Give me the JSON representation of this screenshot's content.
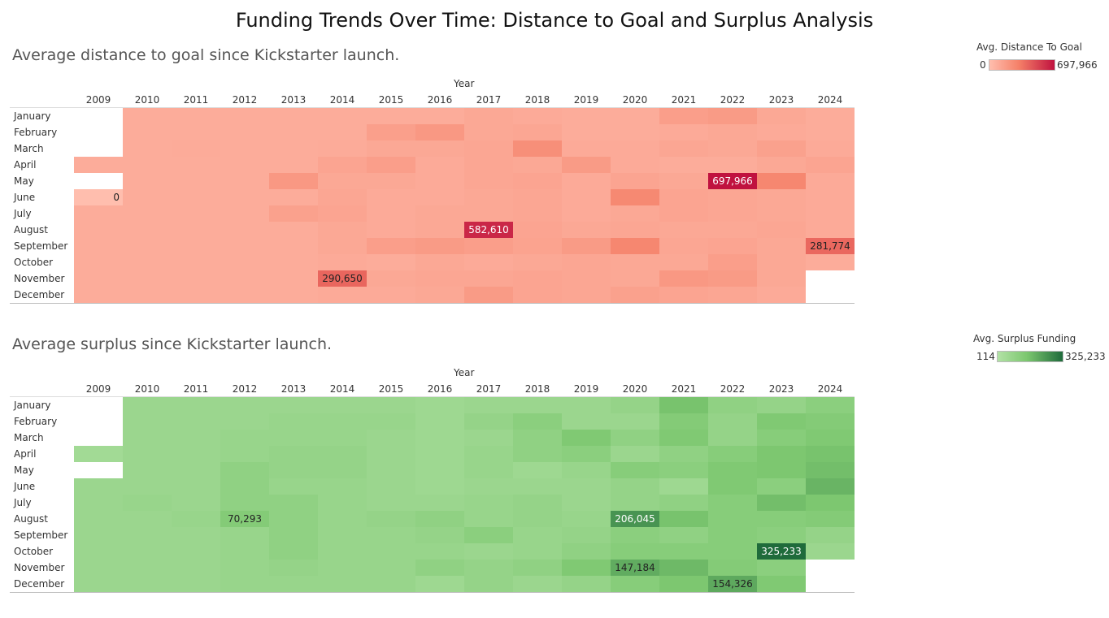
{
  "title": "Funding Trends Over Time: Distance to Goal and Surplus Analysis",
  "colors": {
    "distance_low": "#ffbeae",
    "distance_mid": "#f58068",
    "distance_high": "#c0123f",
    "surplus_low": "#b2e2a5",
    "surplus_mid": "#7cc76f",
    "surplus_high": "#1f6b3b"
  },
  "chart_data": [
    {
      "type": "heatmap",
      "title": "Average distance to goal since Kickstarter launch.",
      "xlabel": "Year",
      "ylabel": "",
      "x": [
        "2009",
        "2010",
        "2011",
        "2012",
        "2013",
        "2014",
        "2015",
        "2016",
        "2017",
        "2018",
        "2019",
        "2020",
        "2021",
        "2022",
        "2023",
        "2024"
      ],
      "y": [
        "January",
        "February",
        "March",
        "April",
        "May",
        "June",
        "July",
        "August",
        "September",
        "October",
        "November",
        "December"
      ],
      "color_legend": {
        "title": "Avg. Distance To Goal",
        "min_label": "0",
        "max_label": "697,966",
        "min": 0,
        "max": 697966
      },
      "values": [
        [
          null,
          20000,
          20000,
          20000,
          20000,
          20000,
          20000,
          20000,
          30000,
          25000,
          20000,
          20000,
          60000,
          70000,
          30000,
          20000
        ],
        [
          null,
          20000,
          20000,
          20000,
          20000,
          20000,
          55000,
          80000,
          30000,
          35000,
          20000,
          20000,
          25000,
          30000,
          25000,
          20000
        ],
        [
          null,
          20000,
          22000,
          20000,
          20000,
          22000,
          30000,
          30000,
          35000,
          120000,
          25000,
          25000,
          35000,
          30000,
          50000,
          25000
        ],
        [
          20000,
          20000,
          20000,
          20000,
          20000,
          40000,
          60000,
          25000,
          35000,
          30000,
          70000,
          25000,
          20000,
          20000,
          30000,
          40000
        ],
        [
          null,
          20000,
          20000,
          20000,
          80000,
          30000,
          30000,
          25000,
          35000,
          40000,
          25000,
          40000,
          30000,
          697966,
          160000,
          25000
        ],
        [
          0,
          20000,
          20000,
          20000,
          20000,
          35000,
          25000,
          25000,
          30000,
          35000,
          25000,
          150000,
          40000,
          35000,
          30000,
          25000
        ],
        [
          20000,
          20000,
          20000,
          20000,
          50000,
          40000,
          25000,
          30000,
          30000,
          35000,
          25000,
          30000,
          40000,
          35000,
          30000,
          25000
        ],
        [
          20000,
          20000,
          20000,
          20000,
          20000,
          30000,
          25000,
          30000,
          582610,
          40000,
          30000,
          35000,
          30000,
          30000,
          35000,
          25000
        ],
        [
          20000,
          20000,
          20000,
          20000,
          20000,
          30000,
          60000,
          70000,
          60000,
          45000,
          70000,
          160000,
          35000,
          40000,
          30000,
          281774
        ],
        [
          20000,
          20000,
          20000,
          20000,
          20000,
          25000,
          20000,
          30000,
          25000,
          30000,
          35000,
          30000,
          30000,
          60000,
          30000,
          20000
        ],
        [
          20000,
          20000,
          20000,
          20000,
          20000,
          290650,
          30000,
          35000,
          35000,
          40000,
          35000,
          30000,
          80000,
          70000,
          30000,
          null
        ],
        [
          20000,
          20000,
          20000,
          20000,
          20000,
          25000,
          25000,
          30000,
          70000,
          40000,
          35000,
          50000,
          40000,
          35000,
          25000,
          null
        ]
      ],
      "labels": [
        {
          "month": "May",
          "year": "2022",
          "text": "697,966"
        },
        {
          "month": "June",
          "year": "2009",
          "text": "0"
        },
        {
          "month": "August",
          "year": "2017",
          "text": "582,610"
        },
        {
          "month": "September",
          "year": "2024",
          "text": "281,774"
        },
        {
          "month": "November",
          "year": "2014",
          "text": "290,650"
        }
      ]
    },
    {
      "type": "heatmap",
      "title": "Average surplus since Kickstarter launch.",
      "xlabel": "Year",
      "ylabel": "",
      "x": [
        "2009",
        "2010",
        "2011",
        "2012",
        "2013",
        "2014",
        "2015",
        "2016",
        "2017",
        "2018",
        "2019",
        "2020",
        "2021",
        "2022",
        "2023",
        "2024"
      ],
      "y": [
        "January",
        "February",
        "March",
        "April",
        "May",
        "June",
        "July",
        "August",
        "September",
        "October",
        "November",
        "December"
      ],
      "color_legend": {
        "title": "Avg. Surplus Funding",
        "min_label": "114",
        "max_label": "325,233",
        "min": 114,
        "max": 325233
      },
      "values": [
        [
          null,
          20000,
          20000,
          20000,
          20000,
          20000,
          20000,
          15000,
          20000,
          20000,
          20000,
          30000,
          100000,
          40000,
          30000,
          50000
        ],
        [
          null,
          20000,
          20000,
          20000,
          25000,
          25000,
          25000,
          15000,
          30000,
          50000,
          20000,
          20000,
          70000,
          30000,
          80000,
          70000
        ],
        [
          null,
          20000,
          20000,
          25000,
          25000,
          25000,
          20000,
          15000,
          20000,
          40000,
          80000,
          40000,
          80000,
          30000,
          60000,
          80000
        ],
        [
          10000,
          20000,
          20000,
          25000,
          30000,
          30000,
          20000,
          15000,
          25000,
          40000,
          50000,
          20000,
          40000,
          60000,
          90000,
          100000
        ],
        [
          null,
          20000,
          20000,
          40000,
          30000,
          30000,
          20000,
          15000,
          25000,
          15000,
          25000,
          60000,
          50000,
          80000,
          90000,
          110000
        ],
        [
          20000,
          20000,
          20000,
          40000,
          25000,
          25000,
          20000,
          15000,
          20000,
          20000,
          20000,
          30000,
          15000,
          80000,
          50000,
          130000
        ],
        [
          20000,
          25000,
          20000,
          40000,
          40000,
          25000,
          20000,
          20000,
          25000,
          30000,
          20000,
          30000,
          40000,
          60000,
          110000,
          90000
        ],
        [
          20000,
          20000,
          25000,
          70293,
          40000,
          25000,
          30000,
          40000,
          25000,
          30000,
          25000,
          206045,
          100000,
          60000,
          60000,
          70000
        ],
        [
          20000,
          20000,
          20000,
          25000,
          40000,
          25000,
          25000,
          30000,
          50000,
          25000,
          30000,
          50000,
          40000,
          60000,
          50000,
          30000
        ],
        [
          20000,
          20000,
          20000,
          25000,
          40000,
          25000,
          25000,
          25000,
          20000,
          25000,
          40000,
          60000,
          60000,
          60000,
          325233,
          20000
        ],
        [
          20000,
          20000,
          20000,
          25000,
          30000,
          25000,
          25000,
          40000,
          30000,
          40000,
          80000,
          147184,
          120000,
          70000,
          50000,
          null
        ],
        [
          20000,
          20000,
          20000,
          25000,
          25000,
          25000,
          25000,
          15000,
          30000,
          20000,
          30000,
          60000,
          90000,
          154326,
          80000,
          null
        ]
      ],
      "labels": [
        {
          "month": "August",
          "year": "2012",
          "text": "70,293"
        },
        {
          "month": "August",
          "year": "2020",
          "text": "206,045"
        },
        {
          "month": "October",
          "year": "2023",
          "text": "325,233"
        },
        {
          "month": "November",
          "year": "2020",
          "text": "147,184"
        },
        {
          "month": "December",
          "year": "2022",
          "text": "154,326"
        }
      ]
    }
  ]
}
